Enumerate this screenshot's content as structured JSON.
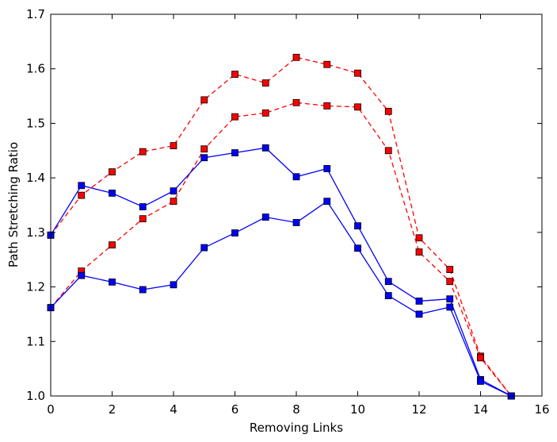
{
  "chart_data": {
    "type": "line",
    "xlabel": "Removing Links",
    "ylabel": "Path Stretching Ratio",
    "xlim": [
      0,
      16
    ],
    "ylim": [
      1.0,
      1.7
    ],
    "xticks": [
      "0",
      "2",
      "4",
      "6",
      "8",
      "10",
      "12",
      "14",
      "16"
    ],
    "yticks": [
      "1.0",
      "1.1",
      "1.2",
      "1.3",
      "1.4",
      "1.5",
      "1.6",
      "1.7"
    ],
    "grid": false,
    "x": [
      0,
      1,
      2,
      3,
      4,
      5,
      6,
      7,
      8,
      9,
      10,
      11,
      12,
      13,
      14,
      15
    ],
    "series": [
      {
        "color": "#ff0000",
        "line_style": "dashed",
        "marker": "square",
        "values": [
          1.295,
          1.368,
          1.411,
          1.448,
          1.459,
          1.543,
          1.59,
          1.574,
          1.621,
          1.608,
          1.592,
          1.522,
          1.29,
          1.232,
          1.073,
          1.0
        ]
      },
      {
        "color": "#ff0000",
        "line_style": "dashed",
        "marker": "square",
        "values": [
          1.162,
          1.229,
          1.277,
          1.325,
          1.357,
          1.453,
          1.512,
          1.519,
          1.538,
          1.532,
          1.53,
          1.45,
          1.264,
          1.21,
          1.07,
          1.0
        ]
      },
      {
        "color": "#0000ff",
        "line_style": "solid",
        "marker": "square",
        "values": [
          1.295,
          1.386,
          1.372,
          1.347,
          1.376,
          1.437,
          1.446,
          1.455,
          1.402,
          1.417,
          1.312,
          1.21,
          1.174,
          1.178,
          1.03,
          1.0
        ]
      },
      {
        "color": "#0000ff",
        "line_style": "solid",
        "marker": "square",
        "values": [
          1.162,
          1.221,
          1.209,
          1.195,
          1.204,
          1.272,
          1.299,
          1.328,
          1.318,
          1.357,
          1.271,
          1.184,
          1.15,
          1.163,
          1.027,
          1.0
        ]
      }
    ]
  }
}
